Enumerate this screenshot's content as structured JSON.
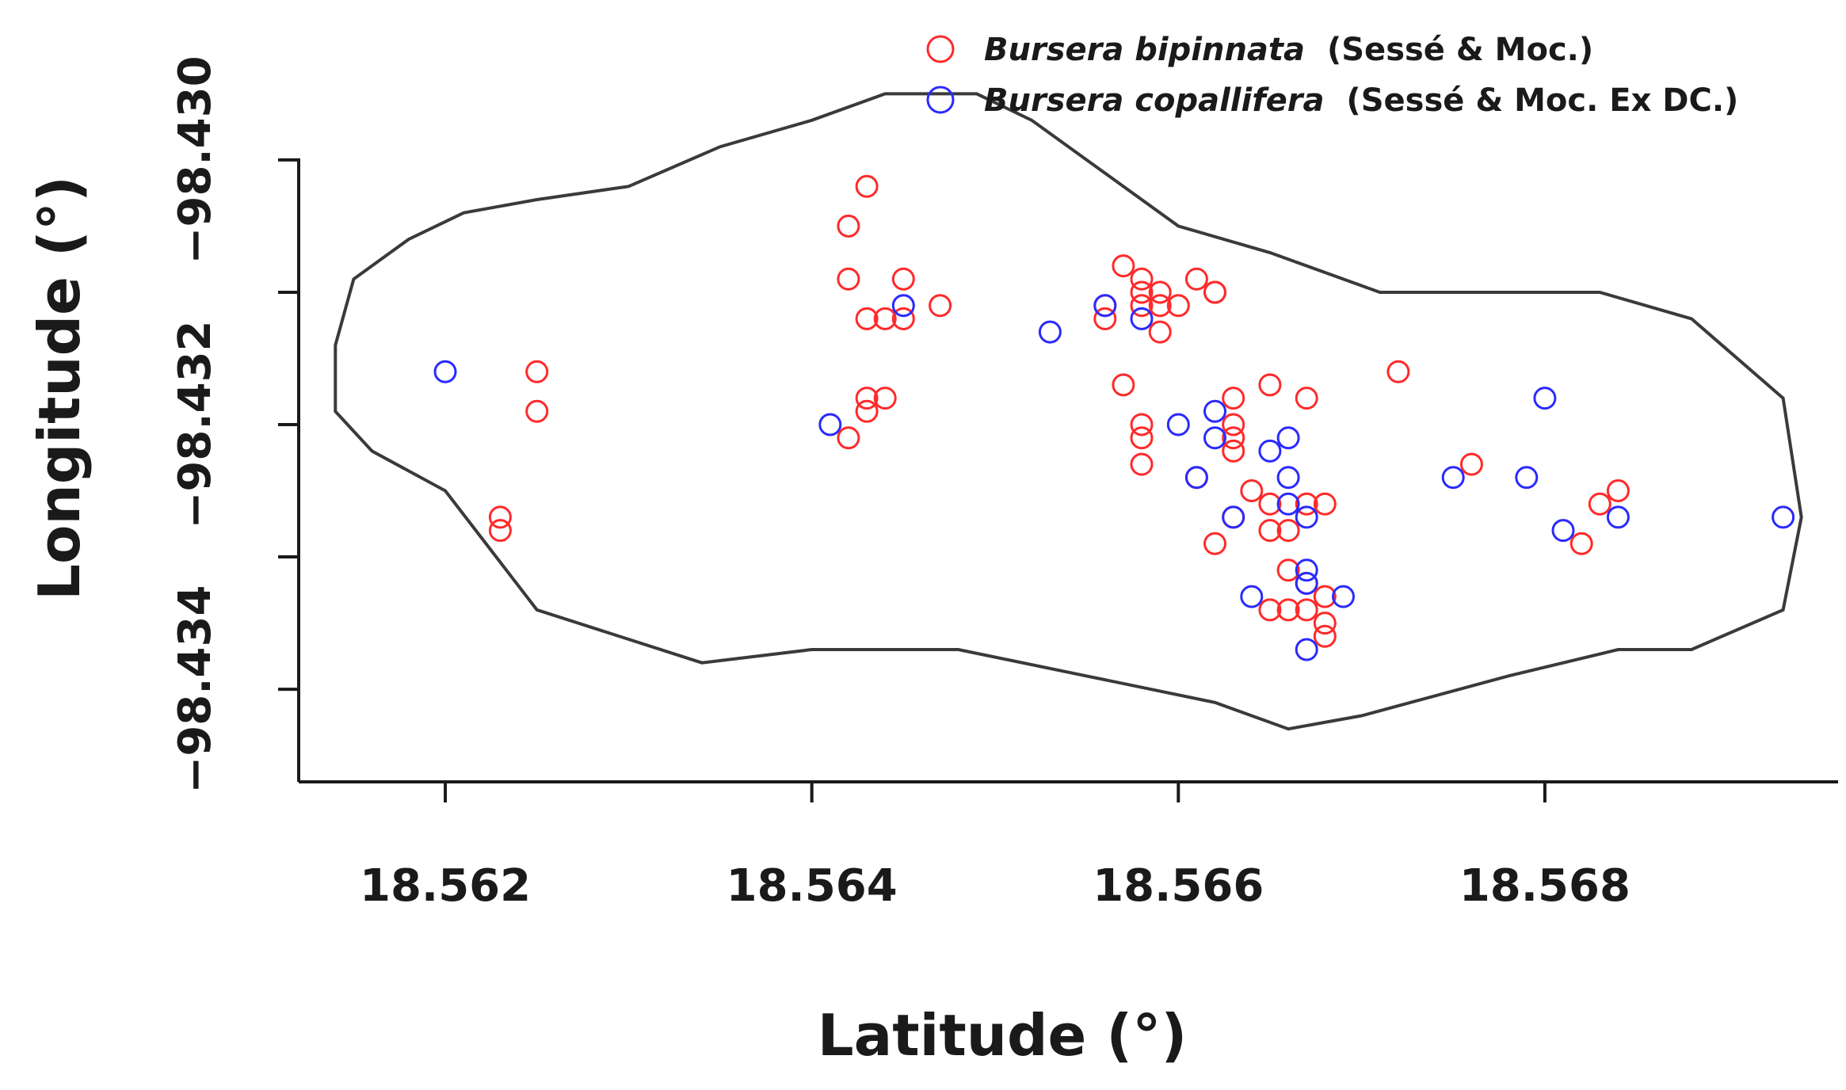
{
  "chart_data": {
    "type": "scatter",
    "xlabel": "Latitude (°)",
    "ylabel": "Longitude (°)",
    "xlim": [
      18.5612,
      18.5696
    ],
    "ylim": [
      -98.4347,
      -98.4293
    ],
    "x_ticks": [
      18.562,
      18.564,
      18.566,
      18.568
    ],
    "x_tick_labels": [
      "18.562",
      "18.564",
      "18.566",
      "18.568"
    ],
    "y_ticks": [
      -98.434,
      -98.433,
      -98.432,
      -98.431,
      -98.43
    ],
    "y_tick_labels": [
      "−98.434",
      "",
      "−98.432",
      "",
      "−98.430"
    ],
    "grid": false,
    "legend_position": "top-right",
    "legend": [
      {
        "species": "Bursera bipinnata",
        "authority": "(Sessé & Moc.)",
        "color": "#ff2a2a"
      },
      {
        "species": "Bursera copallifera",
        "authority": "(Sessé & Moc. Ex DC.)",
        "color": "#2a2aff"
      }
    ],
    "boundary": [
      [
        18.5614,
        -98.4314
      ],
      [
        18.5615,
        -98.4309
      ],
      [
        18.5618,
        -98.4306
      ],
      [
        18.5621,
        -98.4304
      ],
      [
        18.5625,
        -98.4303
      ],
      [
        18.563,
        -98.4302
      ],
      [
        18.5635,
        -98.4299
      ],
      [
        18.564,
        -98.4297
      ],
      [
        18.5644,
        -98.4295
      ],
      [
        18.5649,
        -98.4295
      ],
      [
        18.5652,
        -98.4297
      ],
      [
        18.5656,
        -98.4301
      ],
      [
        18.566,
        -98.4305
      ],
      [
        18.5665,
        -98.4307
      ],
      [
        18.5671,
        -98.431
      ],
      [
        18.5677,
        -98.431
      ],
      [
        18.5683,
        -98.431
      ],
      [
        18.5688,
        -98.4312
      ],
      [
        18.5693,
        -98.4318
      ],
      [
        18.5694,
        -98.4327
      ],
      [
        18.5693,
        -98.4334
      ],
      [
        18.5688,
        -98.4337
      ],
      [
        18.5684,
        -98.4337
      ],
      [
        18.5678,
        -98.4339
      ],
      [
        18.567,
        -98.4342
      ],
      [
        18.5666,
        -98.4343
      ],
      [
        18.5662,
        -98.4341
      ],
      [
        18.5655,
        -98.4339
      ],
      [
        18.5648,
        -98.4337
      ],
      [
        18.564,
        -98.4337
      ],
      [
        18.5634,
        -98.4338
      ],
      [
        18.5625,
        -98.4334
      ],
      [
        18.562,
        -98.4325
      ],
      [
        18.5616,
        -98.4322
      ],
      [
        18.5614,
        -98.4319
      ],
      [
        18.5614,
        -98.4314
      ]
    ],
    "series": [
      {
        "name": "Bursera bipinnata",
        "color": "#ff2a2a",
        "points": [
          [
            18.5643,
            -98.4302
          ],
          [
            18.5642,
            -98.4305
          ],
          [
            18.5642,
            -98.4309
          ],
          [
            18.5645,
            -98.4309
          ],
          [
            18.5643,
            -98.4312
          ],
          [
            18.5644,
            -98.4312
          ],
          [
            18.5645,
            -98.4312
          ],
          [
            18.5647,
            -98.4311
          ],
          [
            18.5625,
            -98.4316
          ],
          [
            18.5625,
            -98.4319
          ],
          [
            18.5623,
            -98.4327
          ],
          [
            18.5623,
            -98.4328
          ],
          [
            18.5644,
            -98.4318
          ],
          [
            18.5643,
            -98.4318
          ],
          [
            18.5643,
            -98.4319
          ],
          [
            18.5642,
            -98.4321
          ],
          [
            18.5657,
            -98.4308
          ],
          [
            18.5658,
            -98.4309
          ],
          [
            18.5658,
            -98.431
          ],
          [
            18.5659,
            -98.431
          ],
          [
            18.5661,
            -98.4309
          ],
          [
            18.5662,
            -98.431
          ],
          [
            18.5662,
            -98.431
          ],
          [
            18.5656,
            -98.4311
          ],
          [
            18.5656,
            -98.4312
          ],
          [
            18.5658,
            -98.4311
          ],
          [
            18.5659,
            -98.4311
          ],
          [
            18.566,
            -98.4311
          ],
          [
            18.5659,
            -98.4313
          ],
          [
            18.5657,
            -98.4317
          ],
          [
            18.5658,
            -98.4321
          ],
          [
            18.5658,
            -98.4323
          ],
          [
            18.5663,
            -98.4318
          ],
          [
            18.5663,
            -98.432
          ],
          [
            18.5663,
            -98.4321
          ],
          [
            18.5665,
            -98.4317
          ],
          [
            18.5667,
            -98.4318
          ],
          [
            18.5672,
            -98.4316
          ],
          [
            18.5661,
            -98.4324
          ],
          [
            18.5664,
            -98.4325
          ],
          [
            18.5665,
            -98.4326
          ],
          [
            18.5663,
            -98.4327
          ],
          [
            18.5662,
            -98.4329
          ],
          [
            18.5665,
            -98.4328
          ],
          [
            18.5666,
            -98.4328
          ],
          [
            18.5667,
            -98.4326
          ],
          [
            18.5668,
            -98.4326
          ],
          [
            18.5666,
            -98.4331
          ],
          [
            18.5667,
            -98.4332
          ],
          [
            18.5668,
            -98.4333
          ],
          [
            18.5665,
            -98.4334
          ],
          [
            18.5666,
            -98.4334
          ],
          [
            18.5667,
            -98.4334
          ],
          [
            18.5668,
            -98.4335
          ],
          [
            18.5668,
            -98.4336
          ],
          [
            18.5676,
            -98.4323
          ],
          [
            18.5683,
            -98.4326
          ],
          [
            18.5684,
            -98.4325
          ],
          [
            18.5682,
            -98.4329
          ],
          [
            18.5663,
            -98.4322
          ],
          [
            18.5658,
            -98.432
          ]
        ]
      },
      {
        "name": "Bursera copallifera",
        "color": "#2a2aff",
        "points": [
          [
            18.562,
            -98.4316
          ],
          [
            18.5641,
            -98.432
          ],
          [
            18.5645,
            -98.4311
          ],
          [
            18.5653,
            -98.4313
          ],
          [
            18.5656,
            -98.4311
          ],
          [
            18.5658,
            -98.4312
          ],
          [
            18.566,
            -98.432
          ],
          [
            18.5662,
            -98.4319
          ],
          [
            18.5662,
            -98.4321
          ],
          [
            18.5661,
            -98.4324
          ],
          [
            18.5663,
            -98.4327
          ],
          [
            18.5665,
            -98.4322
          ],
          [
            18.5666,
            -98.4321
          ],
          [
            18.5666,
            -98.4324
          ],
          [
            18.5666,
            -98.4326
          ],
          [
            18.5667,
            -98.4327
          ],
          [
            18.5667,
            -98.4331
          ],
          [
            18.5667,
            -98.4332
          ],
          [
            18.5664,
            -98.4333
          ],
          [
            18.5669,
            -98.4333
          ],
          [
            18.5667,
            -98.4337
          ],
          [
            18.5675,
            -98.4324
          ],
          [
            18.568,
            -98.4318
          ],
          [
            18.5679,
            -98.4324
          ],
          [
            18.5681,
            -98.4328
          ],
          [
            18.5684,
            -98.4327
          ],
          [
            18.5693,
            -98.4327
          ]
        ]
      }
    ]
  }
}
